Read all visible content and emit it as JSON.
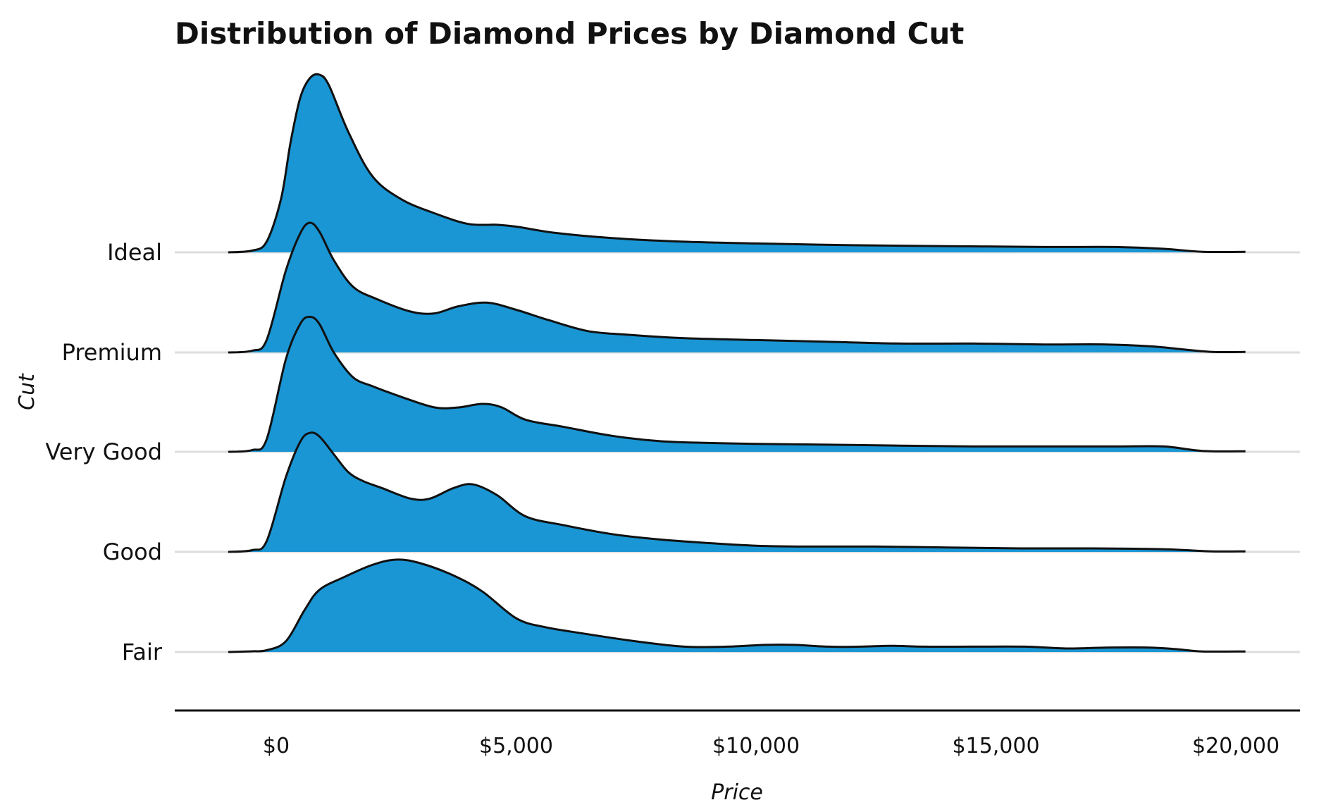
{
  "chart_data": {
    "type": "ridgeline",
    "title": "Distribution of Diamond Prices by Diamond Cut",
    "xlabel": "Price",
    "ylabel": "Cut",
    "x_ticks": [
      0,
      5000,
      10000,
      15000,
      20000
    ],
    "x_tick_labels": [
      "$0",
      "$5,000",
      "$10,000",
      "$15,000",
      "$20,000"
    ],
    "xlim": [
      -2100,
      21200
    ],
    "fill_color": "#1a96d4",
    "line_color": "#111111",
    "grid_color": "#dddddd",
    "scale_note": "density heights relative to the tallest peak (Ideal = 1.0)",
    "categories": [
      "Fair",
      "Good",
      "Very Good",
      "Premium",
      "Ideal"
    ],
    "series": [
      {
        "name": "Fair",
        "x": [
          -1000,
          -500,
          -200,
          200,
          600,
          900,
          1400,
          2000,
          2500,
          3000,
          3700,
          4300,
          5000,
          5600,
          6500,
          7500,
          8500,
          9400,
          10200,
          10800,
          11500,
          12200,
          12800,
          13500,
          14500,
          15600,
          16500,
          17300,
          18200,
          18800,
          19300,
          20200
        ],
        "y": [
          0.0,
          0.004,
          0.01,
          0.06,
          0.24,
          0.35,
          0.42,
          0.49,
          0.52,
          0.5,
          0.43,
          0.34,
          0.19,
          0.14,
          0.1,
          0.06,
          0.03,
          0.03,
          0.04,
          0.04,
          0.03,
          0.03,
          0.035,
          0.03,
          0.03,
          0.03,
          0.02,
          0.025,
          0.025,
          0.015,
          0.003,
          0.003
        ]
      },
      {
        "name": "Good",
        "x": [
          -1000,
          -500,
          -200,
          200,
          500,
          700,
          900,
          1200,
          1500,
          1800,
          2200,
          2800,
          3200,
          3700,
          4100,
          4600,
          5200,
          6000,
          7000,
          8000,
          9000,
          10000,
          11000,
          12500,
          14000,
          15500,
          17000,
          18500,
          19500,
          20200
        ],
        "y": [
          0.0,
          0.01,
          0.06,
          0.42,
          0.62,
          0.67,
          0.65,
          0.55,
          0.45,
          0.4,
          0.36,
          0.3,
          0.3,
          0.36,
          0.38,
          0.32,
          0.2,
          0.15,
          0.1,
          0.07,
          0.05,
          0.035,
          0.03,
          0.03,
          0.025,
          0.02,
          0.02,
          0.015,
          0.003,
          0.003
        ]
      },
      {
        "name": "Very Good",
        "x": [
          -1000,
          -500,
          -200,
          200,
          500,
          700,
          900,
          1200,
          1600,
          2000,
          2600,
          3300,
          3800,
          4300,
          4700,
          5200,
          6000,
          7000,
          8000,
          9000,
          10000,
          11500,
          13000,
          14500,
          16000,
          17500,
          18500,
          19300,
          20200
        ],
        "y": [
          0.0,
          0.01,
          0.07,
          0.52,
          0.72,
          0.76,
          0.72,
          0.56,
          0.42,
          0.37,
          0.31,
          0.25,
          0.25,
          0.27,
          0.25,
          0.18,
          0.14,
          0.09,
          0.06,
          0.05,
          0.045,
          0.04,
          0.035,
          0.03,
          0.03,
          0.03,
          0.03,
          0.005,
          0.003
        ]
      },
      {
        "name": "Premium",
        "x": [
          -1000,
          -500,
          -200,
          200,
          500,
          700,
          900,
          1200,
          1600,
          2100,
          2800,
          3300,
          3800,
          4400,
          5000,
          5700,
          6500,
          7300,
          8500,
          10000,
          11500,
          13000,
          14500,
          16000,
          17300,
          18200,
          18800,
          19500,
          20200
        ],
        "y": [
          0.0,
          0.01,
          0.07,
          0.46,
          0.67,
          0.73,
          0.68,
          0.52,
          0.37,
          0.3,
          0.23,
          0.22,
          0.26,
          0.28,
          0.24,
          0.18,
          0.12,
          0.1,
          0.08,
          0.07,
          0.06,
          0.05,
          0.05,
          0.045,
          0.045,
          0.035,
          0.02,
          0.003,
          0.003
        ]
      },
      {
        "name": "Ideal",
        "x": [
          -1000,
          -500,
          -200,
          100,
          300,
          500,
          700,
          900,
          1100,
          1500,
          2000,
          2600,
          3300,
          4000,
          4600,
          5000,
          5800,
          7000,
          8500,
          10000,
          12000,
          14000,
          16000,
          17500,
          18500,
          19300,
          20200
        ],
        "y": [
          0.0,
          0.01,
          0.06,
          0.3,
          0.62,
          0.87,
          0.98,
          1.0,
          0.94,
          0.68,
          0.43,
          0.3,
          0.22,
          0.16,
          0.155,
          0.145,
          0.11,
          0.08,
          0.06,
          0.05,
          0.04,
          0.035,
          0.03,
          0.03,
          0.02,
          0.003,
          0.003
        ]
      }
    ]
  }
}
